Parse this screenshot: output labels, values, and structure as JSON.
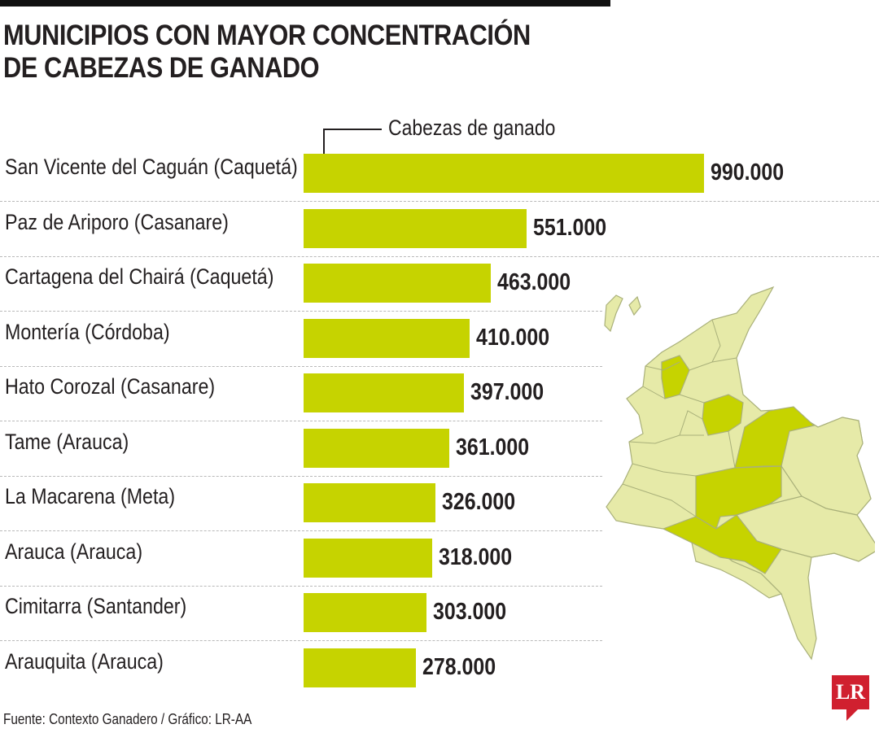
{
  "title": {
    "line1": "MUNICIPIOS CON MAYOR CONCENTRACIÓN",
    "line2": "DE CABEZAS DE GANADO"
  },
  "legend": "Cabezas de ganado",
  "source": "Fuente: Contexto Ganadero / Gráfico: LR-AA",
  "logo": "LR",
  "colors": {
    "bar": "#c6d300",
    "map_fill": "#e6eaa8",
    "map_highlight": "#c6d300",
    "map_stroke": "#a9b07a"
  },
  "chart_data": {
    "type": "bar",
    "orientation": "horizontal",
    "categories": [
      "San Vicente del Caguán (Caquetá)",
      "Paz de Ariporo (Casanare)",
      "Cartagena del Chairá (Caquetá)",
      "Montería (Córdoba)",
      "Hato Corozal (Casanare)",
      "Tame (Arauca)",
      "La Macarena (Meta)",
      "Arauca (Arauca)",
      "Cimitarra (Santander)",
      "Arauquita (Arauca)"
    ],
    "values": [
      990000,
      551000,
      463000,
      410000,
      397000,
      361000,
      326000,
      318000,
      303000,
      278000
    ],
    "value_labels": [
      "990.000",
      "551.000",
      "463.000",
      "410.000",
      "397.000",
      "361.000",
      "326.000",
      "318.000",
      "303.000",
      "278.000"
    ],
    "series": [
      {
        "name": "Cabezas de ganado",
        "values": [
          990000,
          551000,
          463000,
          410000,
          397000,
          361000,
          326000,
          318000,
          303000,
          278000
        ]
      }
    ],
    "title": "MUNICIPIOS CON MAYOR CONCENTRACIÓN DE CABEZAS DE GANADO",
    "xlim": [
      0,
      990000
    ],
    "grid": false
  }
}
